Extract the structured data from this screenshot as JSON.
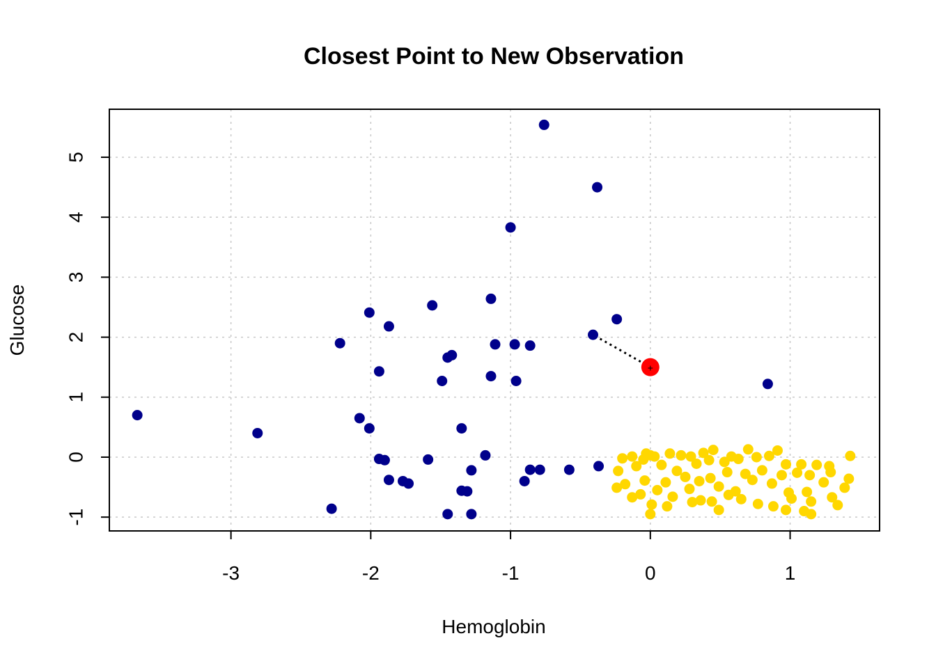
{
  "chart_data": {
    "type": "scatter",
    "title": "Closest Point to New Observation",
    "xlabel": "Hemoglobin",
    "ylabel": "Glucose",
    "xlim": [
      -3.87,
      1.64
    ],
    "ylim": [
      -1.23,
      5.8
    ],
    "x_ticks": [
      -3,
      -2,
      -1,
      0,
      1
    ],
    "y_ticks": [
      -1,
      0,
      1,
      2,
      3,
      4,
      5
    ],
    "grid": true,
    "legend": "none",
    "colors": {
      "class_a": "#00008B",
      "class_b": "#FFD700",
      "new_observation": "#FF0000",
      "connector": "#000000",
      "grid": "#c8c8c8"
    },
    "series": [
      {
        "color": "#00008B",
        "points": [
          [
            -0.76,
            5.54
          ],
          [
            -0.38,
            4.5
          ],
          [
            -1.0,
            3.83
          ],
          [
            -1.14,
            2.64
          ],
          [
            -1.56,
            2.53
          ],
          [
            -2.01,
            2.41
          ],
          [
            -0.24,
            2.3
          ],
          [
            -1.87,
            2.18
          ],
          [
            -0.41,
            2.04
          ],
          [
            -2.22,
            1.9
          ],
          [
            -1.11,
            1.88
          ],
          [
            -0.97,
            1.88
          ],
          [
            -0.86,
            1.86
          ],
          [
            -1.42,
            1.7
          ],
          [
            -1.45,
            1.66
          ],
          [
            -1.94,
            1.43
          ],
          [
            -1.14,
            1.35
          ],
          [
            -0.96,
            1.27
          ],
          [
            -1.49,
            1.27
          ],
          [
            0.84,
            1.22
          ],
          [
            -3.67,
            0.7
          ],
          [
            -2.08,
            0.65
          ],
          [
            -2.01,
            0.48
          ],
          [
            -1.35,
            0.48
          ],
          [
            -2.81,
            0.4
          ],
          [
            -1.18,
            0.03
          ],
          [
            -1.94,
            -0.03
          ],
          [
            -1.9,
            -0.05
          ],
          [
            -1.59,
            -0.04
          ],
          [
            -0.37,
            -0.15
          ],
          [
            -0.58,
            -0.21
          ],
          [
            -0.79,
            -0.21
          ],
          [
            -0.86,
            -0.21
          ],
          [
            -1.28,
            -0.22
          ],
          [
            -0.9,
            -0.4
          ],
          [
            -1.87,
            -0.38
          ],
          [
            -1.77,
            -0.4
          ],
          [
            -1.73,
            -0.44
          ],
          [
            -1.35,
            -0.56
          ],
          [
            -1.31,
            -0.57
          ],
          [
            -2.28,
            -0.86
          ],
          [
            -1.45,
            -0.95
          ],
          [
            -1.28,
            -0.95
          ]
        ]
      },
      {
        "color": "#FFD700",
        "points": [
          [
            -0.2,
            -0.02
          ],
          [
            -0.13,
            0.01
          ],
          [
            -0.05,
            -0.04
          ],
          [
            0.03,
            0.01
          ],
          [
            -0.03,
            0.06
          ],
          [
            0.0,
            0.03
          ],
          [
            0.14,
            0.06
          ],
          [
            0.22,
            0.03
          ],
          [
            0.29,
            0.01
          ],
          [
            0.38,
            0.07
          ],
          [
            0.45,
            0.12
          ],
          [
            0.58,
            0.01
          ],
          [
            0.7,
            0.13
          ],
          [
            0.85,
            0.02
          ],
          [
            0.91,
            0.11
          ],
          [
            0.53,
            -0.08
          ],
          [
            0.63,
            -0.03
          ],
          [
            0.76,
            0.0
          ],
          [
            0.97,
            -0.12
          ],
          [
            1.08,
            -0.12
          ],
          [
            1.19,
            -0.13
          ],
          [
            1.28,
            -0.15
          ],
          [
            1.43,
            0.02
          ],
          [
            -0.23,
            -0.23
          ],
          [
            -0.1,
            -0.15
          ],
          [
            0.08,
            -0.13
          ],
          [
            0.33,
            -0.11
          ],
          [
            0.42,
            -0.05
          ],
          [
            0.55,
            -0.25
          ],
          [
            0.68,
            -0.28
          ],
          [
            0.8,
            -0.22
          ],
          [
            0.94,
            -0.3
          ],
          [
            1.05,
            -0.26
          ],
          [
            1.14,
            -0.3
          ],
          [
            1.29,
            -0.25
          ],
          [
            -0.18,
            -0.45
          ],
          [
            -0.04,
            -0.39
          ],
          [
            0.11,
            -0.42
          ],
          [
            0.19,
            -0.23
          ],
          [
            0.25,
            -0.33
          ],
          [
            0.35,
            -0.4
          ],
          [
            0.43,
            -0.35
          ],
          [
            0.49,
            -0.49
          ],
          [
            0.61,
            -0.57
          ],
          [
            0.73,
            -0.38
          ],
          [
            0.87,
            -0.44
          ],
          [
            0.99,
            -0.59
          ],
          [
            1.12,
            -0.58
          ],
          [
            1.24,
            -0.42
          ],
          [
            1.42,
            -0.36
          ],
          [
            -0.24,
            -0.51
          ],
          [
            -0.07,
            -0.62
          ],
          [
            0.05,
            -0.55
          ],
          [
            0.16,
            -0.66
          ],
          [
            0.28,
            -0.53
          ],
          [
            0.36,
            -0.72
          ],
          [
            0.44,
            -0.74
          ],
          [
            0.56,
            -0.63
          ],
          [
            0.65,
            -0.7
          ],
          [
            0.77,
            -0.78
          ],
          [
            0.88,
            -0.82
          ],
          [
            1.01,
            -0.69
          ],
          [
            1.15,
            -0.74
          ],
          [
            1.34,
            -0.8
          ],
          [
            1.39,
            -0.51
          ],
          [
            -0.13,
            -0.67
          ],
          [
            0.01,
            -0.79
          ],
          [
            0.12,
            -0.82
          ],
          [
            0.3,
            -0.75
          ],
          [
            0.49,
            -0.88
          ],
          [
            0.0,
            -0.95
          ],
          [
            0.97,
            -0.88
          ],
          [
            1.1,
            -0.9
          ],
          [
            1.15,
            -0.95
          ],
          [
            1.3,
            -0.67
          ]
        ]
      }
    ],
    "new_observation": {
      "x": 0.0,
      "y": 1.5
    },
    "nearest_point": {
      "x": -0.41,
      "y": 2.04
    }
  }
}
